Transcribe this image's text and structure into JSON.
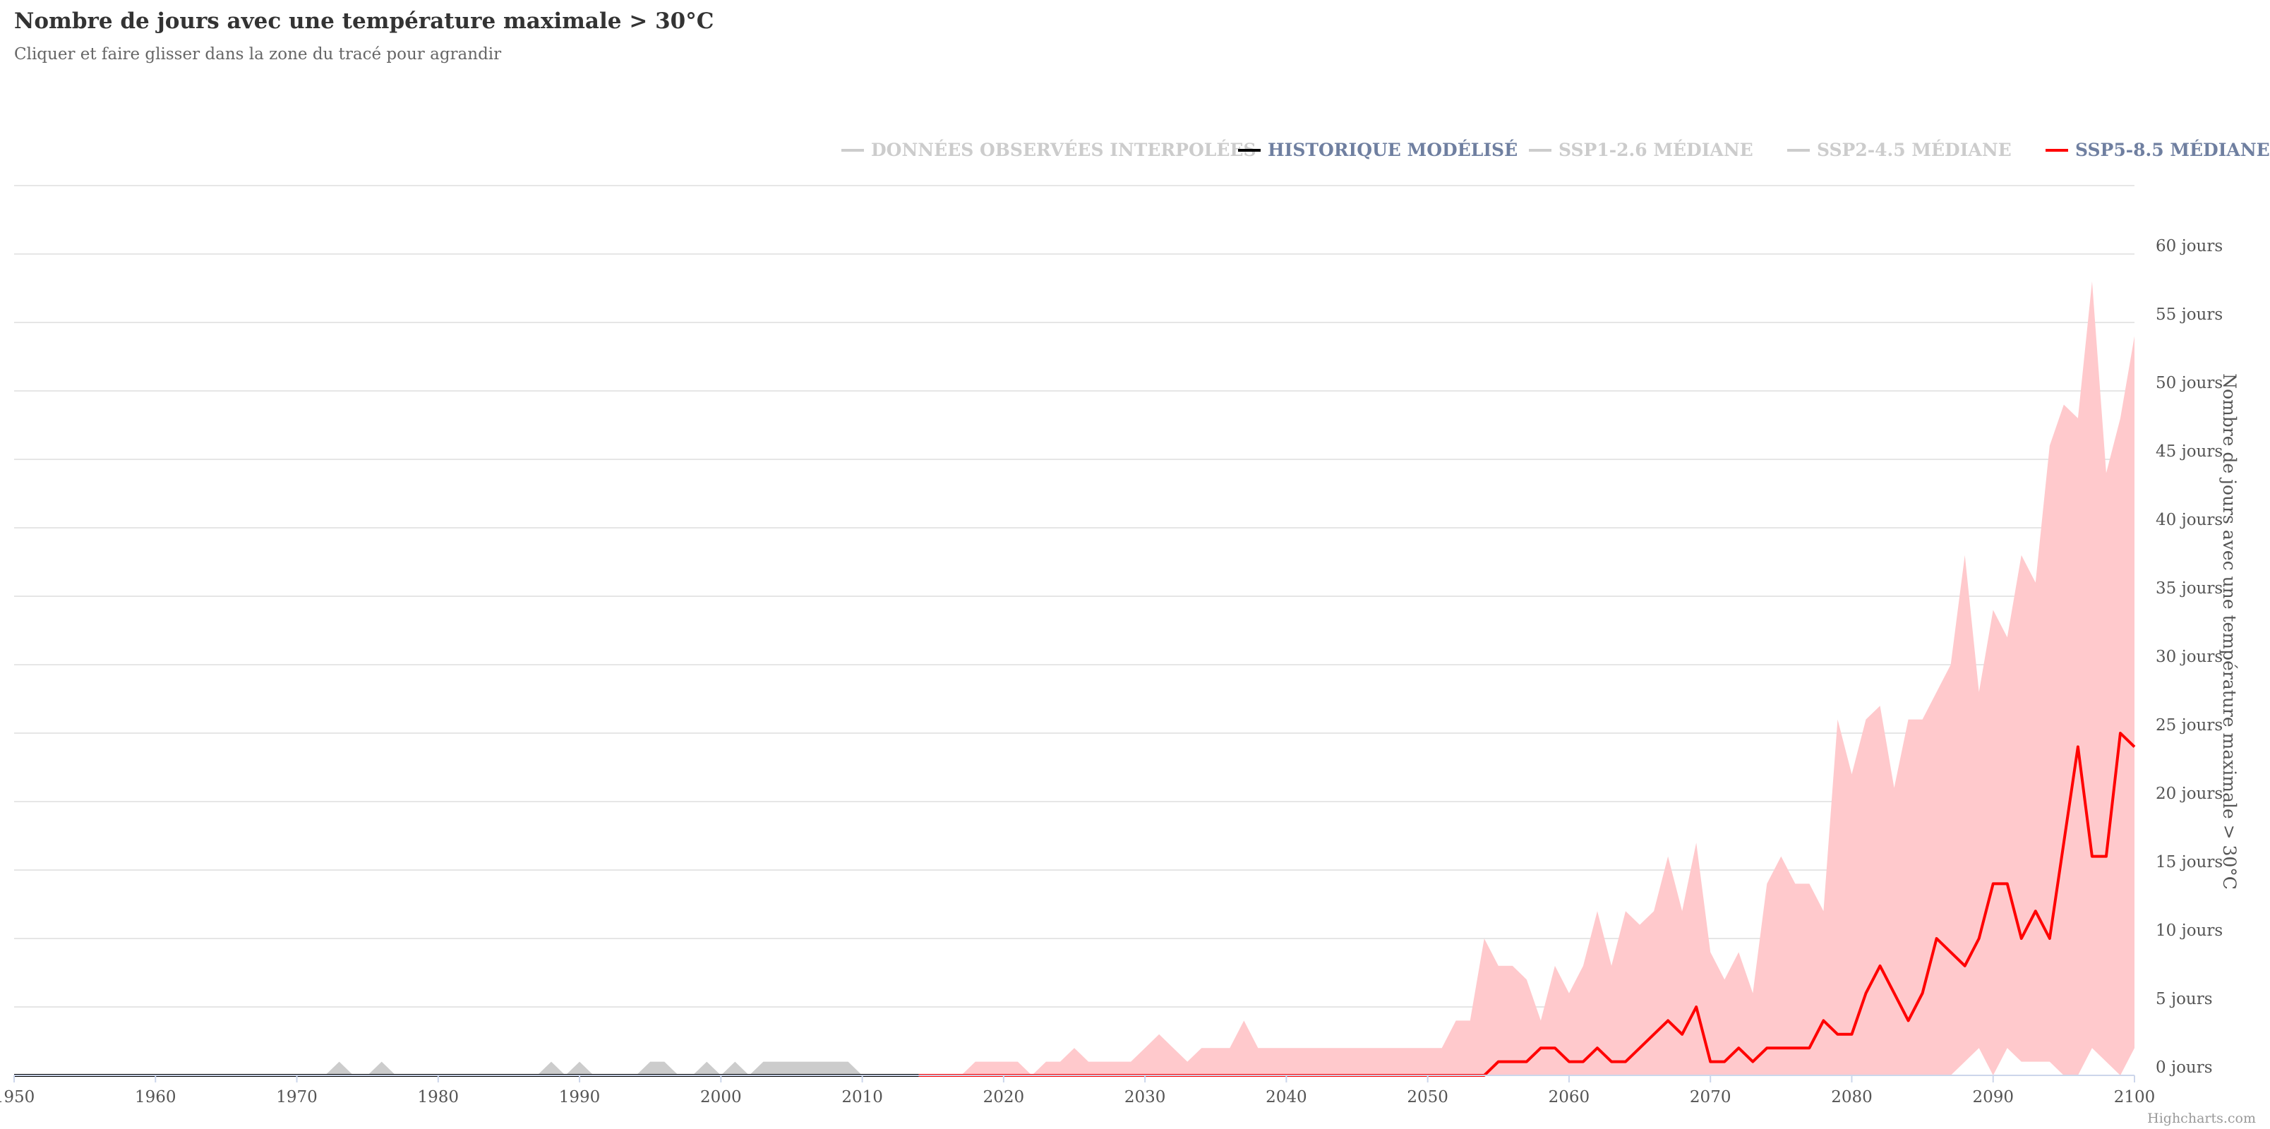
{
  "title": "Nombre de jours avec une température maximale > 30°C",
  "subtitle": "Cliquer et faire glisser dans la zone du tracé pour agrandir",
  "credits": "Highcharts.com",
  "legend": [
    {
      "label": "DONNÉES OBSERVÉES INTERPOLÉES",
      "active": false
    },
    {
      "label": "HISTORIQUE MODÉLISÉ",
      "active": true
    },
    {
      "label": "SSP1-2.6 MÉDIANE",
      "active": false
    },
    {
      "label": "SSP2-4.5 MÉDIANE",
      "active": false
    },
    {
      "label": "SSP5-8.5 MÉDIANE",
      "active": true
    }
  ],
  "colors": {
    "observed": "#cccccc",
    "historical": "#000000",
    "ssp585_line": "#ff0000",
    "ssp585_range": "#ffc9cc",
    "historical_range": "#cccccc",
    "legend_active": "#6f7fa0",
    "legend_inactive": "#cccccc",
    "grid": "#e6e6e6"
  },
  "chart_data": {
    "type": "line",
    "title": "Nombre de jours avec une température maximale > 30°C",
    "ylabel": "Nombre de jours avec une température maximale > 30°C",
    "xlabel": "",
    "xlim": [
      1950,
      2100
    ],
    "ylim": [
      0,
      65
    ],
    "y_ticks": [
      {
        "value": 0,
        "label": "0 jours"
      },
      {
        "value": 5,
        "label": "5 jours"
      },
      {
        "value": 10,
        "label": "10 jours"
      },
      {
        "value": 15,
        "label": "15 jours"
      },
      {
        "value": 20,
        "label": "20 jours"
      },
      {
        "value": 25,
        "label": "25 jours"
      },
      {
        "value": 30,
        "label": "30 jours"
      },
      {
        "value": 35,
        "label": "35 jours"
      },
      {
        "value": 40,
        "label": "40 jours"
      },
      {
        "value": 45,
        "label": "45 jours"
      },
      {
        "value": 50,
        "label": "50 jours"
      },
      {
        "value": 55,
        "label": "55 jours"
      },
      {
        "value": 60,
        "label": "60 jours"
      }
    ],
    "x_ticks": [
      1950,
      1960,
      1970,
      1980,
      1990,
      2000,
      2010,
      2020,
      2030,
      2040,
      2050,
      2060,
      2070,
      2080,
      2090,
      2100
    ],
    "grid": true,
    "legend_position": "top-right",
    "series": [
      {
        "name": "HISTORIQUE MODÉLISÉ",
        "kind": "line",
        "points": [
          [
            1950,
            0
          ],
          [
            2014,
            0
          ]
        ]
      },
      {
        "name": "HISTORIQUE MODÉLISÉ",
        "kind": "range",
        "points": [
          [
            1950,
            0,
            0
          ],
          [
            1972,
            0,
            0
          ],
          [
            1973,
            0,
            1
          ],
          [
            1974,
            0,
            0
          ],
          [
            1975,
            0,
            0
          ],
          [
            1976,
            0,
            1
          ],
          [
            1977,
            0,
            0
          ],
          [
            1987,
            0,
            0
          ],
          [
            1988,
            0,
            1
          ],
          [
            1989,
            0,
            0
          ],
          [
            1990,
            0,
            1
          ],
          [
            1991,
            0,
            0
          ],
          [
            1994,
            0,
            0
          ],
          [
            1995,
            0,
            1
          ],
          [
            1996,
            0,
            1
          ],
          [
            1997,
            0,
            0
          ],
          [
            1998,
            0,
            0
          ],
          [
            1999,
            0,
            1
          ],
          [
            2000,
            0,
            0
          ],
          [
            2001,
            0,
            1
          ],
          [
            2002,
            0,
            0
          ],
          [
            2003,
            0,
            1
          ],
          [
            2004,
            0,
            1
          ],
          [
            2005,
            0,
            1
          ],
          [
            2006,
            0,
            1
          ],
          [
            2007,
            0,
            1
          ],
          [
            2008,
            0,
            1
          ],
          [
            2009,
            0,
            1
          ],
          [
            2010,
            0,
            0
          ],
          [
            2014,
            0,
            0
          ]
        ]
      },
      {
        "name": "SSP5-8.5 MÉDIANE",
        "kind": "range",
        "points": [
          [
            2014,
            0,
            0
          ],
          [
            2017,
            0,
            0
          ],
          [
            2018,
            0,
            1
          ],
          [
            2019,
            0,
            1
          ],
          [
            2020,
            0,
            1
          ],
          [
            2021,
            0,
            1
          ],
          [
            2022,
            0,
            0
          ],
          [
            2023,
            0,
            1
          ],
          [
            2024,
            0,
            1
          ],
          [
            2025,
            0,
            2
          ],
          [
            2026,
            0,
            1
          ],
          [
            2027,
            0,
            1
          ],
          [
            2028,
            0,
            1
          ],
          [
            2029,
            0,
            1
          ],
          [
            2030,
            0,
            2
          ],
          [
            2031,
            0,
            3
          ],
          [
            2032,
            0,
            2
          ],
          [
            2033,
            0,
            1
          ],
          [
            2034,
            0,
            2
          ],
          [
            2035,
            0,
            2
          ],
          [
            2036,
            0,
            2
          ],
          [
            2037,
            0,
            4
          ],
          [
            2038,
            0,
            2
          ],
          [
            2039,
            0,
            2
          ],
          [
            2040,
            0,
            2
          ],
          [
            2041,
            0,
            2
          ],
          [
            2042,
            0,
            2
          ],
          [
            2043,
            0,
            2
          ],
          [
            2044,
            0,
            2
          ],
          [
            2045,
            0,
            2
          ],
          [
            2046,
            0,
            2
          ],
          [
            2047,
            0,
            2
          ],
          [
            2048,
            0,
            2
          ],
          [
            2049,
            0,
            2
          ],
          [
            2050,
            0,
            2
          ],
          [
            2051,
            0,
            2
          ],
          [
            2052,
            0,
            4
          ],
          [
            2053,
            0,
            4
          ],
          [
            2054,
            0,
            10
          ],
          [
            2055,
            0,
            8
          ],
          [
            2056,
            0,
            8
          ],
          [
            2057,
            0,
            7
          ],
          [
            2058,
            0,
            4
          ],
          [
            2059,
            0,
            8
          ],
          [
            2060,
            0,
            6
          ],
          [
            2061,
            0,
            8
          ],
          [
            2062,
            0,
            12
          ],
          [
            2063,
            0,
            8
          ],
          [
            2064,
            0,
            12
          ],
          [
            2065,
            0,
            11
          ],
          [
            2066,
            0,
            12
          ],
          [
            2067,
            0,
            16
          ],
          [
            2068,
            0,
            12
          ],
          [
            2069,
            0,
            17
          ],
          [
            2070,
            0,
            9
          ],
          [
            2071,
            0,
            7
          ],
          [
            2072,
            0,
            9
          ],
          [
            2073,
            0,
            6
          ],
          [
            2074,
            0,
            14
          ],
          [
            2075,
            0,
            16
          ],
          [
            2076,
            0,
            14
          ],
          [
            2077,
            0,
            14
          ],
          [
            2078,
            0,
            12
          ],
          [
            2079,
            0,
            26
          ],
          [
            2080,
            0,
            22
          ],
          [
            2081,
            0,
            26
          ],
          [
            2082,
            0,
            27
          ],
          [
            2083,
            0,
            21
          ],
          [
            2084,
            0,
            26
          ],
          [
            2085,
            0,
            26
          ],
          [
            2086,
            0,
            28
          ],
          [
            2087,
            0,
            30
          ],
          [
            2088,
            1,
            38
          ],
          [
            2089,
            2,
            28
          ],
          [
            2090,
            0,
            34
          ],
          [
            2091,
            2,
            32
          ],
          [
            2092,
            1,
            38
          ],
          [
            2093,
            1,
            36
          ],
          [
            2094,
            1,
            46
          ],
          [
            2095,
            0,
            49
          ],
          [
            2096,
            0,
            48
          ],
          [
            2097,
            2,
            58
          ],
          [
            2098,
            1,
            44
          ],
          [
            2099,
            0,
            48
          ],
          [
            2100,
            2,
            54
          ]
        ]
      },
      {
        "name": "SSP5-8.5 MÉDIANE",
        "kind": "line",
        "points": [
          [
            2014,
            0
          ],
          [
            2054,
            0
          ],
          [
            2055,
            1
          ],
          [
            2056,
            1
          ],
          [
            2057,
            1
          ],
          [
            2058,
            2
          ],
          [
            2059,
            2
          ],
          [
            2060,
            1
          ],
          [
            2061,
            1
          ],
          [
            2062,
            2
          ],
          [
            2063,
            1
          ],
          [
            2064,
            1
          ],
          [
            2065,
            2
          ],
          [
            2066,
            3
          ],
          [
            2067,
            4
          ],
          [
            2068,
            3
          ],
          [
            2069,
            5
          ],
          [
            2070,
            1
          ],
          [
            2071,
            1
          ],
          [
            2072,
            2
          ],
          [
            2073,
            1
          ],
          [
            2074,
            2
          ],
          [
            2075,
            2
          ],
          [
            2076,
            2
          ],
          [
            2077,
            2
          ],
          [
            2078,
            4
          ],
          [
            2079,
            3
          ],
          [
            2080,
            3
          ],
          [
            2081,
            6
          ],
          [
            2082,
            8
          ],
          [
            2083,
            6
          ],
          [
            2084,
            4
          ],
          [
            2085,
            6
          ],
          [
            2086,
            10
          ],
          [
            2087,
            9
          ],
          [
            2088,
            8
          ],
          [
            2089,
            10
          ],
          [
            2090,
            14
          ],
          [
            2091,
            14
          ],
          [
            2092,
            10
          ],
          [
            2093,
            12
          ],
          [
            2094,
            10
          ],
          [
            2095,
            17
          ],
          [
            2096,
            24
          ],
          [
            2097,
            16
          ],
          [
            2098,
            16
          ],
          [
            2099,
            25
          ],
          [
            2100,
            24
          ]
        ]
      }
    ]
  }
}
